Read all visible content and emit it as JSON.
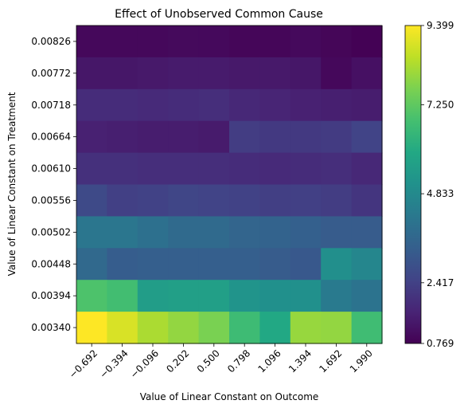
{
  "chart_data": {
    "type": "heatmap",
    "title": "Effect of Unobserved Common Cause",
    "xlabel": "Value of Linear Constant on Outcome",
    "ylabel": "Value of Linear Constant on Treatment",
    "x_tick_labels": [
      "−0.692",
      "−0.394",
      "−0.096",
      "0.202",
      "0.500",
      "0.798",
      "1.096",
      "1.394",
      "1.692",
      "1.990"
    ],
    "y_tick_labels": [
      "0.00826",
      "0.00772",
      "0.00718",
      "0.00664",
      "0.00610",
      "0.00556",
      "0.00502",
      "0.00448",
      "0.00394",
      "0.00340"
    ],
    "values": [
      [
        0.95,
        0.95,
        0.95,
        0.98,
        0.97,
        0.9,
        0.9,
        0.97,
        0.88,
        0.8
      ],
      [
        1.3,
        1.3,
        1.35,
        1.4,
        1.4,
        1.35,
        1.35,
        1.3,
        0.95,
        1.15
      ],
      [
        1.85,
        1.85,
        1.8,
        1.85,
        1.9,
        1.75,
        1.65,
        1.55,
        1.5,
        1.45
      ],
      [
        1.55,
        1.5,
        1.45,
        1.45,
        1.4,
        2.3,
        2.2,
        2.2,
        2.25,
        2.5
      ],
      [
        1.95,
        1.95,
        1.9,
        1.9,
        1.9,
        1.85,
        1.8,
        1.85,
        1.9,
        1.75
      ],
      [
        2.7,
        2.4,
        2.45,
        2.55,
        2.5,
        2.45,
        2.35,
        2.4,
        2.3,
        2.1
      ],
      [
        4.15,
        4.15,
        3.95,
        3.75,
        3.75,
        3.55,
        3.5,
        3.4,
        3.25,
        3.25
      ],
      [
        3.7,
        3.3,
        3.35,
        3.35,
        3.35,
        3.35,
        3.25,
        3.15,
        5.0,
        4.7
      ],
      [
        6.95,
        6.75,
        5.55,
        5.6,
        5.6,
        5.2,
        5.05,
        5.05,
        4.3,
        4.05
      ],
      [
        9.4,
        8.9,
        8.3,
        8.0,
        7.65,
        6.65,
        5.95,
        8.05,
        8.0,
        6.7
      ]
    ],
    "vmin": 0.769,
    "vmax": 9.399,
    "colormap": "viridis",
    "colorbar_ticks": [
      "0.769",
      "2.417",
      "4.833",
      "7.250",
      "9.399"
    ],
    "colorbar_tick_values": [
      0.769,
      2.417,
      4.833,
      7.25,
      9.399
    ],
    "grid": false
  }
}
